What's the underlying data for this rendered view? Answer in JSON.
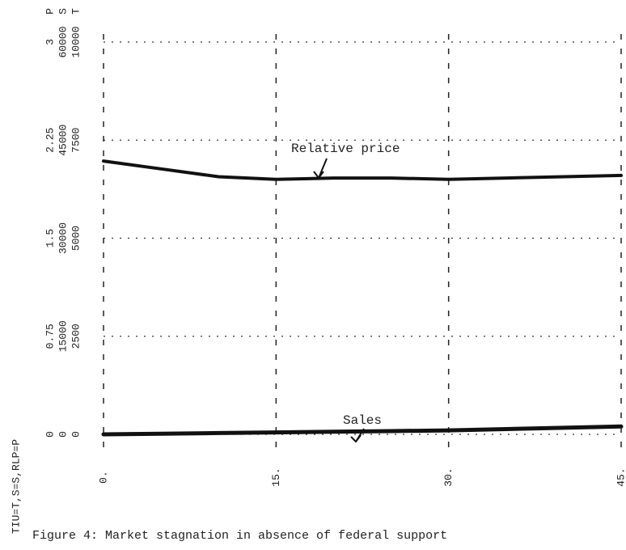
{
  "chart_data": {
    "type": "line",
    "caption": "Figure 4:  Market stagnation in absence of federal support",
    "axis_legend": "TIU=T,S=S,RLP=P",
    "scale_letters": [
      "P",
      "S",
      "T"
    ],
    "annotations": [
      "Relative price",
      "Sales"
    ],
    "x": [
      0,
      5,
      10,
      15,
      20,
      25,
      30,
      35,
      40,
      45
    ],
    "xlim": [
      0,
      45
    ],
    "xticks": [
      {
        "value": 0,
        "label": "0."
      },
      {
        "value": 15,
        "label": "15."
      },
      {
        "value": 30,
        "label": "30."
      },
      {
        "value": 45,
        "label": "45."
      }
    ],
    "ylim": [
      0,
      3
    ],
    "yticks": [
      0,
      0.75,
      1.5,
      2.25,
      3
    ],
    "y2lim": [
      0,
      60000
    ],
    "y2ticks": [
      0,
      15000,
      30000,
      45000,
      60000
    ],
    "y3lim": [
      0,
      10000
    ],
    "y3ticks": [
      0,
      2500,
      5000,
      7500,
      10000
    ],
    "grid": true,
    "series": [
      {
        "name": "Relative price",
        "color": "#111",
        "values": [
          2.09,
          2.03,
          1.97,
          1.95,
          1.96,
          1.96,
          1.95,
          1.96,
          1.97,
          1.98
        ]
      },
      {
        "name": "Sales",
        "color": "#111",
        "axis": "y2",
        "values": [
          0,
          100,
          200,
          300,
          400,
          500,
          600,
          800,
          1000,
          1200
        ]
      }
    ]
  }
}
